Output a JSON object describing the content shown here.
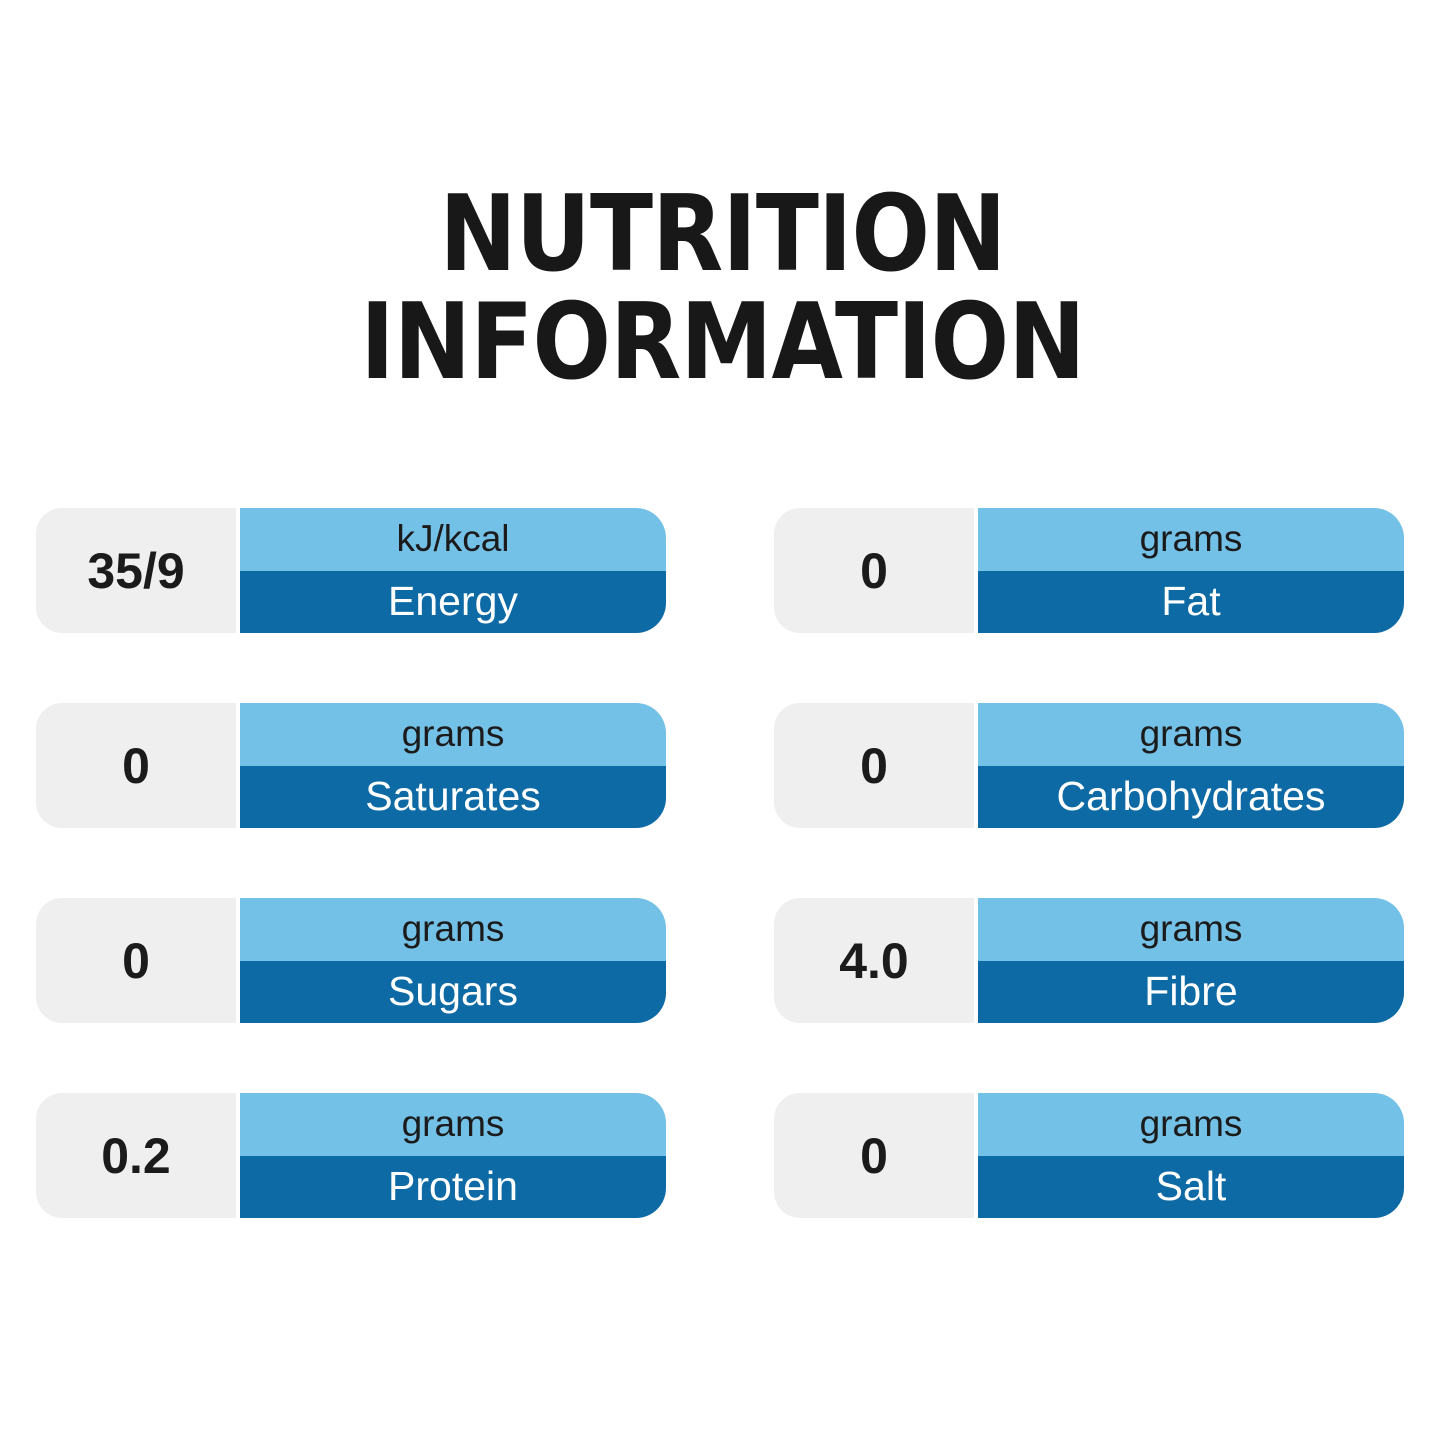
{
  "title": {
    "line1": "NUTRITION",
    "line2": "INFORMATION"
  },
  "colors": {
    "light_blue": "#74C1E8",
    "dark_blue": "#0D6AA5",
    "value_bg": "#EFEFEF",
    "text_dark": "#1B1B1B",
    "text_light": "#FFFFFF"
  },
  "cards": [
    {
      "id": "energy",
      "value": "35/9",
      "unit": "kJ/kcal",
      "label": "Energy"
    },
    {
      "id": "fat",
      "value": "0",
      "unit": "grams",
      "label": "Fat"
    },
    {
      "id": "saturates",
      "value": "0",
      "unit": "grams",
      "label": "Saturates"
    },
    {
      "id": "carbohydrates",
      "value": "0",
      "unit": "grams",
      "label": "Carbohydrates"
    },
    {
      "id": "sugars",
      "value": "0",
      "unit": "grams",
      "label": "Sugars"
    },
    {
      "id": "fibre",
      "value": "4.0",
      "unit": "grams",
      "label": "Fibre"
    },
    {
      "id": "protein",
      "value": "0.2",
      "unit": "grams",
      "label": "Protein"
    },
    {
      "id": "salt",
      "value": "0",
      "unit": "grams",
      "label": "Salt"
    }
  ]
}
